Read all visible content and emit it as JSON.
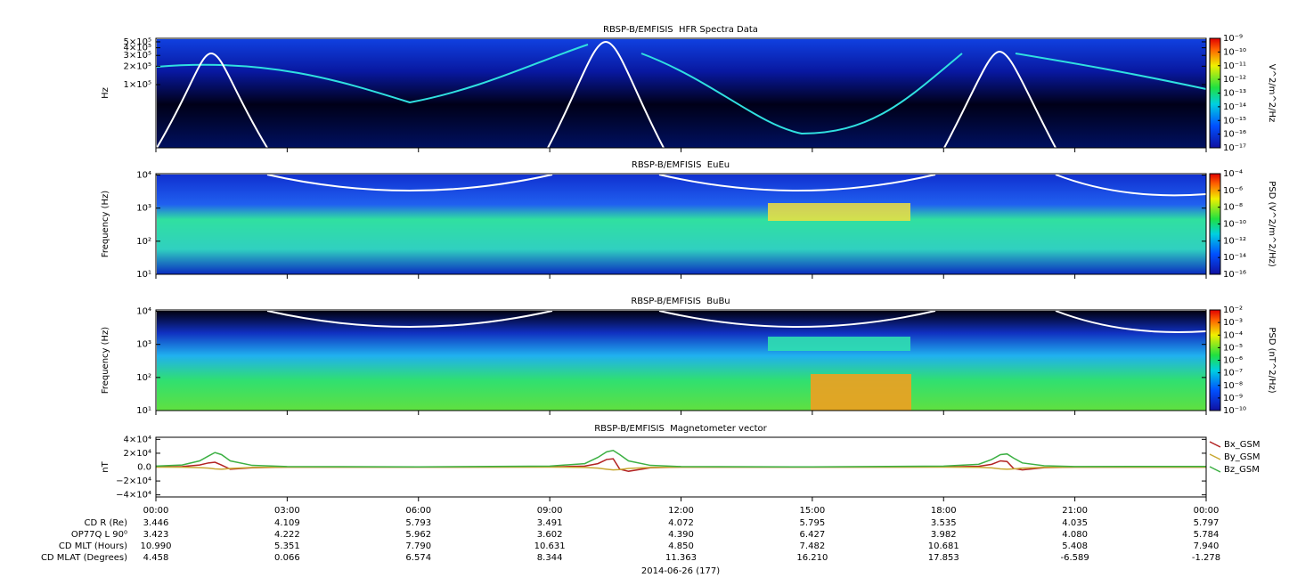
{
  "chart_data": [
    {
      "type": "spectrogram",
      "title": "RBSP-B/EMFISIS  HFR Spectra Data",
      "ylabel": "Hz",
      "ylog": true,
      "ylim": [
        9300,
        571000
      ],
      "yticks": [
        {
          "value": 500000,
          "label": "5×10⁵"
        },
        {
          "value": 400000,
          "label": "4×10⁵"
        },
        {
          "value": 300000,
          "label": "3×10⁵"
        },
        {
          "value": 200000,
          "label": "2×10⁵"
        },
        {
          "value": 100000,
          "label": "1×10⁵"
        }
      ],
      "zlabel": "V^2/m^2/Hz",
      "zlog": true,
      "zlim": [
        1e-17,
        1e-09
      ],
      "zticks": [
        {
          "value": 1e-09,
          "label": "10⁻⁹"
        },
        {
          "value": 1e-10,
          "label": "10⁻¹⁰"
        },
        {
          "value": 1e-11,
          "label": "10⁻¹¹"
        },
        {
          "value": 1e-12,
          "label": "10⁻¹²"
        },
        {
          "value": 1e-13,
          "label": "10⁻¹³"
        },
        {
          "value": 1e-14,
          "label": "10⁻¹⁴"
        },
        {
          "value": 1e-15,
          "label": "10⁻¹⁵"
        },
        {
          "value": 1e-16,
          "label": "10⁻¹⁶"
        },
        {
          "value": 1e-17,
          "label": "10⁻¹⁷"
        }
      ]
    },
    {
      "type": "spectrogram",
      "title": "RBSP-B/EMFISIS  EuEu",
      "ylabel": "Frequency (Hz)",
      "ylog": true,
      "ylim": [
        10,
        11000
      ],
      "yticks": [
        {
          "value": 10000,
          "label": "10⁴"
        },
        {
          "value": 1000,
          "label": "10³"
        },
        {
          "value": 100,
          "label": "10²"
        },
        {
          "value": 10,
          "label": "10¹"
        }
      ],
      "zlabel": "PSD (V^2/m^2/Hz)",
      "zlog": true,
      "zlim": [
        1e-16,
        0.0001
      ],
      "zticks": [
        {
          "value": 0.0001,
          "label": "10⁻⁴"
        },
        {
          "value": 1e-06,
          "label": "10⁻⁶"
        },
        {
          "value": 1e-08,
          "label": "10⁻⁸"
        },
        {
          "value": 1e-10,
          "label": "10⁻¹⁰"
        },
        {
          "value": 1e-12,
          "label": "10⁻¹²"
        },
        {
          "value": 1e-14,
          "label": "10⁻¹⁴"
        },
        {
          "value": 1e-16,
          "label": "10⁻¹⁶"
        }
      ]
    },
    {
      "type": "spectrogram",
      "title": "RBSP-B/EMFISIS  BuBu",
      "ylabel": "Frequency (Hz)",
      "ylog": true,
      "ylim": [
        10,
        11000
      ],
      "yticks": [
        {
          "value": 10000,
          "label": "10⁴"
        },
        {
          "value": 1000,
          "label": "10³"
        },
        {
          "value": 100,
          "label": "10²"
        },
        {
          "value": 10,
          "label": "10¹"
        }
      ],
      "zlabel": "PSD (nT^2/Hz)",
      "zlog": true,
      "zlim": [
        1e-10,
        0.01
      ],
      "zticks": [
        {
          "value": 0.01,
          "label": "10⁻²"
        },
        {
          "value": 0.001,
          "label": "10⁻³"
        },
        {
          "value": 0.0001,
          "label": "10⁻⁴"
        },
        {
          "value": 1e-05,
          "label": "10⁻⁵"
        },
        {
          "value": 1e-06,
          "label": "10⁻⁶"
        },
        {
          "value": 1e-07,
          "label": "10⁻⁷"
        },
        {
          "value": 1e-08,
          "label": "10⁻⁸"
        },
        {
          "value": 1e-09,
          "label": "10⁻⁹"
        },
        {
          "value": 1e-10,
          "label": "10⁻¹⁰"
        }
      ]
    },
    {
      "type": "line",
      "title": "RBSP-B/EMFISIS  Magnetometer vector",
      "ylabel": "nT",
      "ylim": [
        -43000,
        43000
      ],
      "yticks": [
        {
          "value": 40000,
          "label": "4×10⁴"
        },
        {
          "value": 20000,
          "label": "2×10⁴"
        },
        {
          "value": 0,
          "label": "0.0"
        },
        {
          "value": -20000,
          "label": "−2×10⁴"
        },
        {
          "value": -40000,
          "label": "−4×10⁴"
        }
      ],
      "xlim": [
        0,
        24
      ],
      "xticks": [
        {
          "value": 0,
          "label": "00:00"
        },
        {
          "value": 3,
          "label": "03:00"
        },
        {
          "value": 6,
          "label": "06:00"
        },
        {
          "value": 9,
          "label": "09:00"
        },
        {
          "value": 12,
          "label": "12:00"
        },
        {
          "value": 15,
          "label": "15:00"
        },
        {
          "value": 18,
          "label": "18:00"
        },
        {
          "value": 21,
          "label": "21:00"
        },
        {
          "value": 24,
          "label": "00:00"
        }
      ],
      "x": [
        0,
        0.6,
        1.0,
        1.2,
        1.35,
        1.5,
        1.7,
        2.2,
        3,
        6,
        9,
        9.8,
        10.1,
        10.3,
        10.45,
        10.6,
        10.8,
        11.3,
        12,
        15,
        18,
        18.8,
        19.1,
        19.3,
        19.45,
        19.6,
        19.8,
        20.3,
        21,
        24
      ],
      "series": [
        {
          "name": "Bx_GSM",
          "color": "#b22222",
          "values": [
            200,
            800,
            3000,
            6000,
            7000,
            3000,
            -3000,
            -1000,
            0,
            0,
            300,
            1500,
            5000,
            11000,
            12000,
            -3000,
            -6000,
            -1000,
            0,
            0,
            300,
            1200,
            4000,
            9000,
            8000,
            -2000,
            -4000,
            -800,
            0,
            0
          ]
        },
        {
          "name": "By_GSM",
          "color": "#c8a832",
          "values": [
            0,
            -200,
            -800,
            -1500,
            -2500,
            -3000,
            -2000,
            -500,
            0,
            0,
            0,
            -500,
            -1500,
            -3000,
            -4000,
            -3500,
            -2000,
            -500,
            0,
            0,
            0,
            -300,
            -1200,
            -2500,
            -3000,
            -2500,
            -1500,
            -300,
            0,
            0
          ]
        },
        {
          "name": "Bz_GSM",
          "color": "#3cb043",
          "values": [
            1500,
            3000,
            9000,
            16000,
            21000,
            18000,
            9000,
            2500,
            800,
            300,
            1500,
            5000,
            14000,
            22000,
            24000,
            18000,
            9000,
            2500,
            800,
            300,
            1500,
            4000,
            11000,
            18000,
            19000,
            13000,
            6000,
            2000,
            800,
            1000
          ]
        }
      ]
    }
  ],
  "ephemeris": {
    "rows": [
      {
        "label": "CD R (Re)",
        "values": [
          "3.446",
          "4.109",
          "5.793",
          "3.491",
          "4.072",
          "5.795",
          "3.535",
          "4.035",
          "5.797"
        ]
      },
      {
        "label": "OP77Q L 90⁰",
        "values": [
          "3.423",
          "4.222",
          "5.962",
          "3.602",
          "4.390",
          "6.427",
          "3.982",
          "4.080",
          "5.784"
        ]
      },
      {
        "label": "CD MLT (Hours)",
        "values": [
          "10.990",
          "5.351",
          "7.790",
          "10.631",
          "4.850",
          "7.482",
          "10.681",
          "5.408",
          "7.940"
        ]
      },
      {
        "label": "CD MLAT (Degrees)",
        "values": [
          "4.458",
          "0.066",
          "6.574",
          "8.344",
          "11.363",
          "16.210",
          "17.853",
          "-6.589",
          "-1.278"
        ]
      }
    ],
    "date": "2014-06-26 (177)"
  }
}
